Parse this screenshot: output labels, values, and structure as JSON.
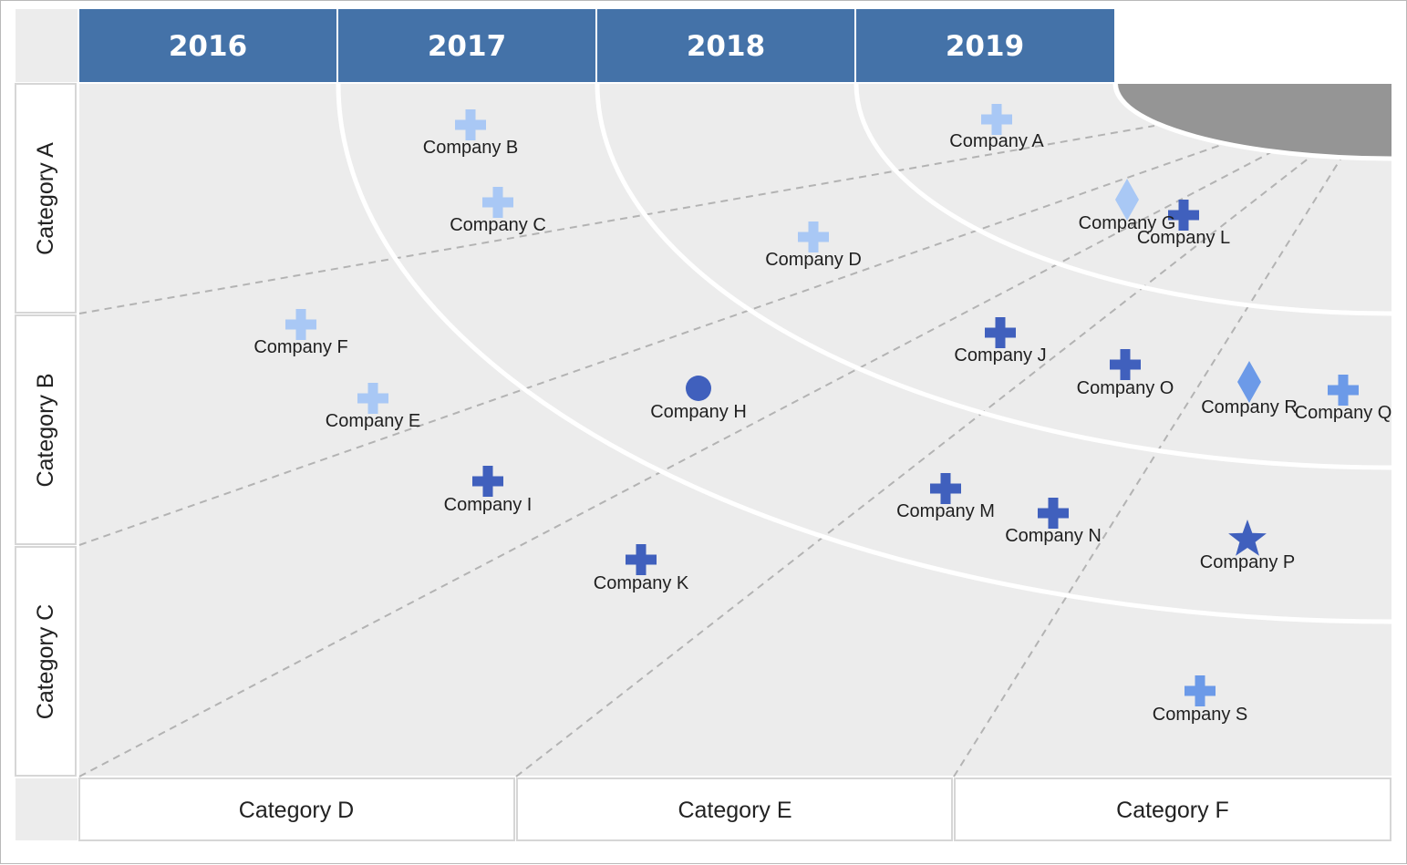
{
  "years": [
    "2016",
    "2017",
    "2018",
    "2019"
  ],
  "row_categories": [
    "Category A",
    "Category B",
    "Category C"
  ],
  "column_categories": [
    "Category D",
    "Category E",
    "Category F"
  ],
  "colors": {
    "header_blue": "#4472a8",
    "canvas_grey": "#ececec",
    "corner_cap": "#959595",
    "marker_light": "#a9c8f5",
    "marker_mid": "#6c9ae8",
    "marker_dark": "#4060bd",
    "ring_line": "#ffffff",
    "divider_dash": "#b3b3b3"
  },
  "companies": [
    {
      "name": "Company A",
      "shape": "plus",
      "tone": "marker_light"
    },
    {
      "name": "Company B",
      "shape": "plus",
      "tone": "marker_light"
    },
    {
      "name": "Company C",
      "shape": "plus",
      "tone": "marker_light"
    },
    {
      "name": "Company D",
      "shape": "plus",
      "tone": "marker_light"
    },
    {
      "name": "Company E",
      "shape": "plus",
      "tone": "marker_light"
    },
    {
      "name": "Company F",
      "shape": "plus",
      "tone": "marker_light"
    },
    {
      "name": "Company G",
      "shape": "diamond",
      "tone": "marker_light"
    },
    {
      "name": "Company H",
      "shape": "circle",
      "tone": "marker_dark"
    },
    {
      "name": "Company I",
      "shape": "plus",
      "tone": "marker_dark"
    },
    {
      "name": "Company J",
      "shape": "plus",
      "tone": "marker_dark"
    },
    {
      "name": "Company K",
      "shape": "plus",
      "tone": "marker_dark"
    },
    {
      "name": "Company L",
      "shape": "plus",
      "tone": "marker_dark"
    },
    {
      "name": "Company M",
      "shape": "plus",
      "tone": "marker_dark"
    },
    {
      "name": "Company N",
      "shape": "plus",
      "tone": "marker_dark"
    },
    {
      "name": "Company O",
      "shape": "plus",
      "tone": "marker_dark"
    },
    {
      "name": "Company P",
      "shape": "star",
      "tone": "marker_dark"
    },
    {
      "name": "Company Q",
      "shape": "plus",
      "tone": "marker_mid"
    },
    {
      "name": "Company R",
      "shape": "diamond",
      "tone": "marker_mid"
    },
    {
      "name": "Company S",
      "shape": "plus",
      "tone": "marker_mid"
    }
  ]
}
